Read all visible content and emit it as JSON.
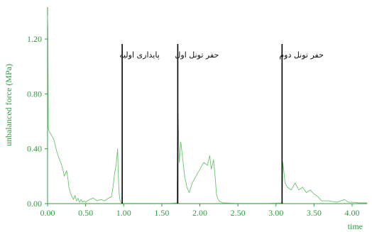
{
  "chart_data": {
    "type": "line",
    "title": "",
    "xlabel": "time",
    "ylabel": "unbalanced force (MPa)",
    "xlim": [
      0,
      4.2
    ],
    "ylim": [
      0,
      1.45
    ],
    "x_ticks": [
      "0.00",
      "0.50",
      "1.00",
      "1.50",
      "2.00",
      "2.50",
      "3.00",
      "3.50",
      "4.00"
    ],
    "y_ticks": [
      "0.00",
      "0.40",
      "0.80",
      "1.20"
    ],
    "grid": false,
    "legend": "none",
    "colors": {
      "series": "#6cc36f",
      "axes": "#2e9e3e",
      "markers": "#000000"
    },
    "stage_markers": [
      {
        "x": 0.98,
        "label": "پایداری اولیه"
      },
      {
        "x": 1.71,
        "label": "حفر تونل اول"
      },
      {
        "x": 3.08,
        "label": "حفر تونل دوم"
      }
    ],
    "series": [
      {
        "x": [
          0,
          0.005,
          0.01,
          0.02,
          0.03,
          0.05,
          0.08,
          0.1,
          0.12,
          0.15,
          0.18,
          0.2,
          0.22,
          0.25,
          0.27,
          0.28,
          0.3,
          0.32,
          0.34,
          0.36,
          0.38,
          0.4,
          0.42,
          0.44,
          0.46,
          0.48,
          0.5,
          0.55,
          0.6,
          0.65,
          0.7,
          0.75,
          0.8,
          0.84,
          0.86,
          0.88,
          0.9,
          0.92,
          0.93,
          0.94,
          0.95,
          0.96,
          0.97,
          0.98,
          1.0,
          1.2,
          1.4,
          1.6,
          1.7,
          1.71,
          1.72,
          1.73,
          1.75,
          1.77,
          1.8,
          1.83,
          1.86,
          1.9,
          1.95,
          2.0,
          2.05,
          2.1,
          2.13,
          2.15,
          2.18,
          2.2,
          2.22,
          2.25,
          2.3,
          2.5,
          2.7,
          2.9,
          3.08,
          3.09,
          3.1,
          3.12,
          3.15,
          3.2,
          3.25,
          3.3,
          3.35,
          3.4,
          3.45,
          3.5,
          3.55,
          3.6,
          3.7,
          3.8,
          3.9,
          3.95,
          4.0,
          4.1,
          4.2
        ],
        "values": [
          1.37,
          1.28,
          0.55,
          0.53,
          0.52,
          0.5,
          0.47,
          0.43,
          0.38,
          0.33,
          0.29,
          0.25,
          0.2,
          0.24,
          0.17,
          0.12,
          0.08,
          0.05,
          0.03,
          0.06,
          0.02,
          0.04,
          0.01,
          0.03,
          0.01,
          0.02,
          0.01,
          0.03,
          0.04,
          0.02,
          0.03,
          0.02,
          0.04,
          0.05,
          0.12,
          0.22,
          0.28,
          0.4,
          0.2,
          0.08,
          0.03,
          0.01,
          0.005,
          0.002,
          0.002,
          0.002,
          0.002,
          0.002,
          0.005,
          0.75,
          0.5,
          0.3,
          0.45,
          0.35,
          0.2,
          0.12,
          0.08,
          0.15,
          0.2,
          0.25,
          0.3,
          0.28,
          0.35,
          0.25,
          0.32,
          0.2,
          0.06,
          0.02,
          0.005,
          0.002,
          0.002,
          0.002,
          0.005,
          0.3,
          0.25,
          0.15,
          0.12,
          0.1,
          0.15,
          0.1,
          0.12,
          0.08,
          0.1,
          0.07,
          0.05,
          0.02,
          0.02,
          0.01,
          0.03,
          0.01,
          0.01,
          0.005,
          0.005
        ]
      }
    ]
  }
}
